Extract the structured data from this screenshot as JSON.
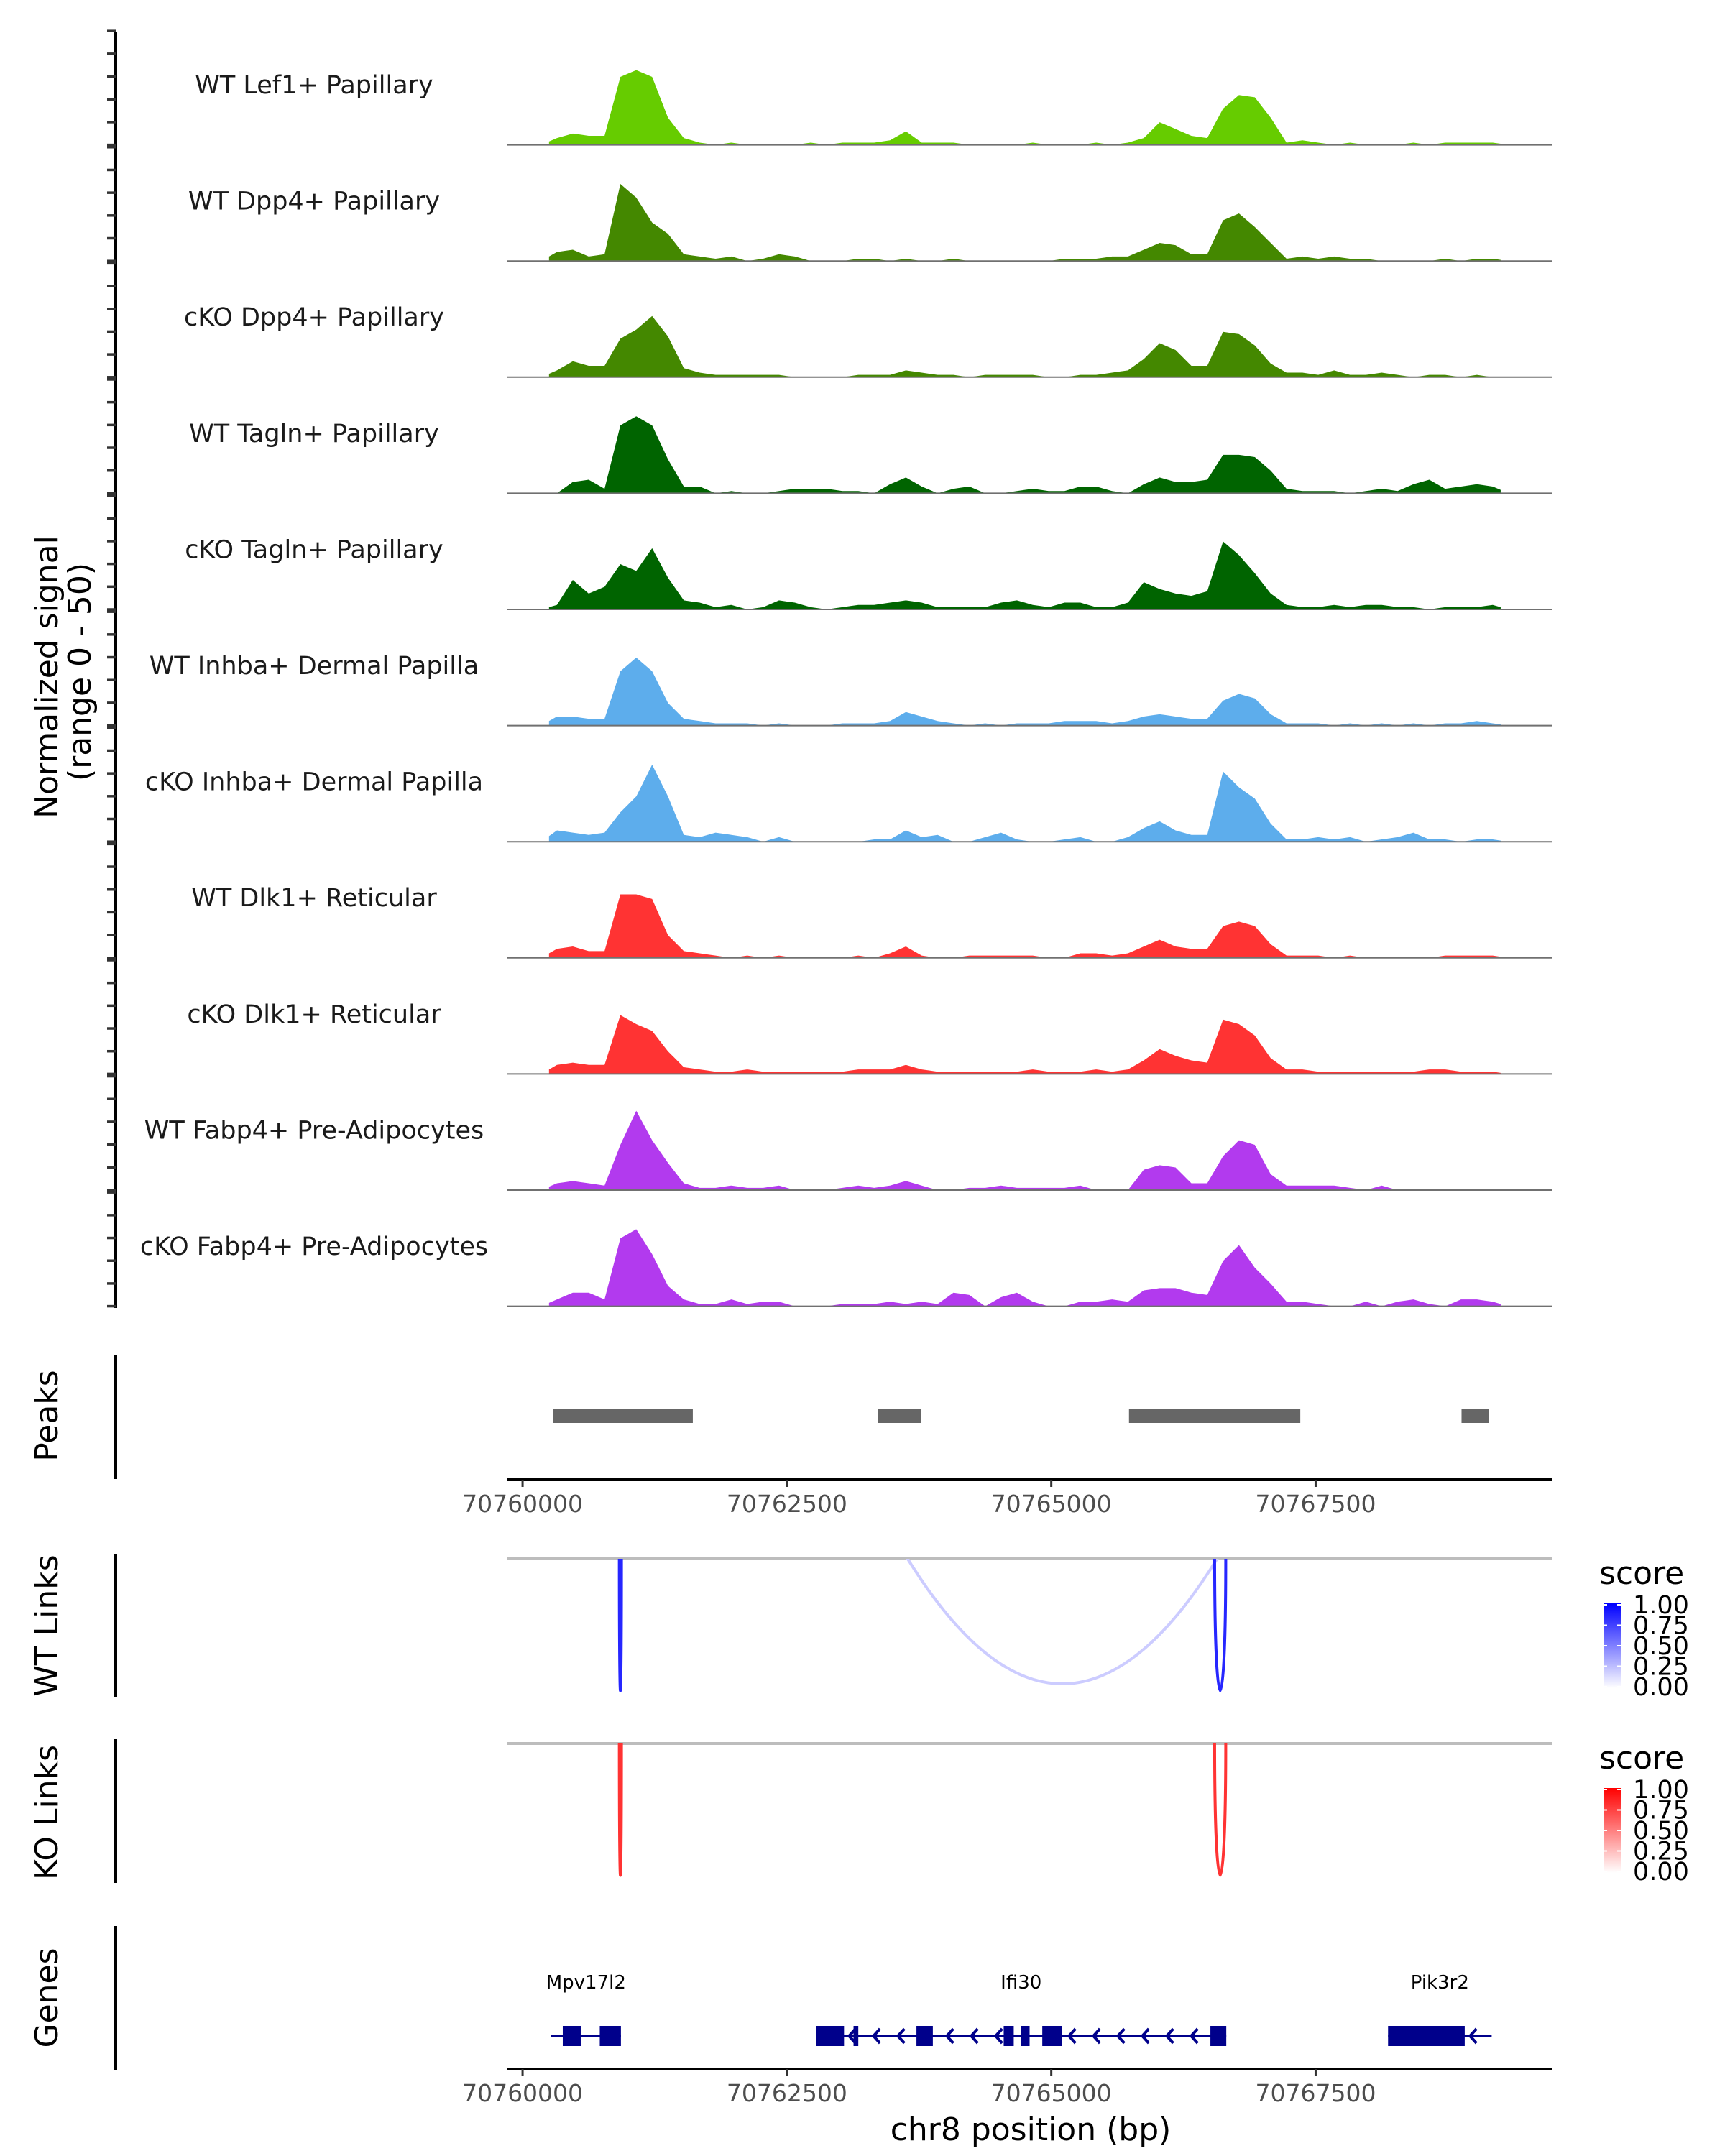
{
  "chart_data": {
    "type": "area",
    "title": "",
    "region": {
      "chrom": "chr8",
      "start": 70759850,
      "end": 70769740
    },
    "xlabel": "chr8 position (bp)",
    "ylabel": "Normalized signal\n(range 0 - 50)",
    "ylabel_lines": [
      "Normalized signal",
      "(range 0 - 50)"
    ],
    "ylim": [
      0,
      50
    ],
    "x_ticks": [
      70760000,
      70762500,
      70765000,
      70767500
    ],
    "x_tick_labels": [
      "70760000",
      "70762500",
      "70765000",
      "70767500"
    ],
    "bin_start": 70760250,
    "bin_width": 150,
    "coverage_tracks": [
      {
        "name": "WT Lef1+ Papillary",
        "color": "#66CC00",
        "values": [
          3,
          5,
          4,
          4,
          30,
          33,
          30,
          12,
          3,
          1,
          0,
          1,
          0,
          0,
          0,
          0,
          1,
          0,
          1,
          1,
          1,
          2,
          6,
          1,
          1,
          1,
          0,
          0,
          0,
          0,
          1,
          0,
          0,
          0,
          1,
          0,
          1,
          3,
          10,
          7,
          4,
          3,
          16,
          22,
          21,
          12,
          1,
          2,
          1,
          0,
          1,
          0,
          0,
          0,
          1,
          0,
          1,
          1,
          1,
          1
        ]
      },
      {
        "name": "WT Dpp4+ Papillary",
        "color": "#448800",
        "values": [
          4,
          5,
          2,
          3,
          34,
          28,
          17,
          12,
          3,
          2,
          1,
          2,
          0,
          1,
          3,
          2,
          0,
          0,
          0,
          1,
          1,
          0,
          1,
          0,
          0,
          1,
          0,
          0,
          0,
          0,
          0,
          0,
          1,
          1,
          1,
          2,
          2,
          5,
          8,
          7,
          3,
          3,
          18,
          21,
          15,
          8,
          1,
          2,
          1,
          2,
          1,
          1,
          0,
          0,
          0,
          0,
          1,
          0,
          1,
          1
        ]
      },
      {
        "name": "cKO Dpp4+ Papillary",
        "color": "#448800",
        "values": [
          3,
          7,
          5,
          5,
          17,
          21,
          27,
          18,
          4,
          2,
          1,
          1,
          1,
          1,
          1,
          0,
          0,
          0,
          0,
          1,
          1,
          1,
          3,
          2,
          1,
          1,
          0,
          1,
          1,
          1,
          1,
          0,
          0,
          1,
          1,
          2,
          3,
          8,
          15,
          12,
          5,
          5,
          20,
          19,
          14,
          6,
          2,
          2,
          1,
          3,
          1,
          1,
          2,
          1,
          0,
          1,
          1,
          0,
          1,
          0
        ]
      },
      {
        "name": "WT Tagln+ Papillary",
        "color": "#006400",
        "values": [
          0,
          5,
          6,
          2,
          30,
          34,
          30,
          15,
          3,
          3,
          0,
          1,
          0,
          0,
          1,
          2,
          2,
          2,
          1,
          1,
          0,
          4,
          7,
          3,
          0,
          2,
          3,
          0,
          0,
          1,
          2,
          1,
          1,
          3,
          3,
          1,
          0,
          4,
          7,
          5,
          5,
          6,
          17,
          17,
          16,
          10,
          2,
          1,
          1,
          1,
          0,
          1,
          2,
          1,
          4,
          6,
          2,
          3,
          4,
          3
        ]
      },
      {
        "name": "cKO Tagln+ Papillary",
        "color": "#006400",
        "values": [
          2,
          13,
          7,
          10,
          20,
          17,
          27,
          14,
          4,
          3,
          1,
          2,
          0,
          1,
          4,
          3,
          1,
          0,
          1,
          2,
          2,
          3,
          4,
          3,
          1,
          1,
          1,
          1,
          3,
          4,
          2,
          1,
          3,
          3,
          1,
          1,
          3,
          12,
          9,
          7,
          6,
          8,
          30,
          24,
          16,
          7,
          2,
          1,
          1,
          2,
          1,
          2,
          2,
          1,
          1,
          0,
          1,
          1,
          1,
          2
        ]
      },
      {
        "name": "WT Inhba+ Dermal Papilla",
        "color": "#5DADEC",
        "values": [
          4,
          4,
          3,
          3,
          24,
          30,
          24,
          10,
          3,
          2,
          1,
          1,
          1,
          0,
          1,
          0,
          0,
          0,
          1,
          1,
          1,
          2,
          6,
          4,
          2,
          1,
          0,
          1,
          0,
          1,
          1,
          1,
          2,
          2,
          2,
          1,
          2,
          4,
          5,
          4,
          3,
          3,
          11,
          14,
          12,
          5,
          1,
          1,
          1,
          0,
          1,
          0,
          1,
          0,
          1,
          0,
          1,
          1,
          2,
          1
        ]
      },
      {
        "name": "cKO Inhba+ Dermal Papilla",
        "color": "#5DADEC",
        "values": [
          5,
          4,
          3,
          4,
          13,
          20,
          34,
          20,
          3,
          2,
          4,
          3,
          2,
          0,
          2,
          0,
          0,
          0,
          0,
          0,
          1,
          1,
          5,
          2,
          3,
          0,
          0,
          2,
          4,
          1,
          0,
          0,
          1,
          2,
          0,
          0,
          2,
          6,
          9,
          5,
          3,
          3,
          31,
          24,
          19,
          8,
          1,
          1,
          2,
          1,
          2,
          0,
          1,
          2,
          4,
          1,
          1,
          0,
          1,
          1
        ]
      },
      {
        "name": "WT Dlk1+ Reticular",
        "color": "#FF3333",
        "values": [
          4,
          5,
          3,
          3,
          28,
          28,
          26,
          10,
          3,
          2,
          1,
          0,
          1,
          0,
          1,
          0,
          0,
          0,
          0,
          1,
          0,
          2,
          5,
          1,
          0,
          0,
          1,
          1,
          1,
          1,
          1,
          0,
          0,
          2,
          2,
          1,
          2,
          5,
          8,
          5,
          4,
          4,
          14,
          16,
          14,
          6,
          1,
          1,
          1,
          0,
          1,
          0,
          0,
          0,
          0,
          0,
          1,
          1,
          1,
          1
        ]
      },
      {
        "name": "cKO Dlk1+ Reticular",
        "color": "#FF3333",
        "values": [
          4,
          5,
          4,
          4,
          26,
          22,
          19,
          10,
          3,
          2,
          1,
          1,
          2,
          1,
          1,
          1,
          1,
          1,
          1,
          2,
          2,
          2,
          4,
          2,
          1,
          1,
          1,
          1,
          1,
          1,
          2,
          1,
          1,
          1,
          2,
          1,
          2,
          6,
          11,
          8,
          6,
          5,
          24,
          22,
          17,
          7,
          2,
          2,
          1,
          1,
          1,
          1,
          1,
          1,
          1,
          2,
          2,
          1,
          1,
          1
        ]
      },
      {
        "name": "WT Fabp4+ Pre-Adipocytes",
        "color": "#B23AEE",
        "values": [
          3,
          4,
          3,
          2,
          20,
          35,
          22,
          12,
          3,
          1,
          1,
          2,
          1,
          1,
          2,
          0,
          0,
          0,
          1,
          2,
          1,
          2,
          4,
          2,
          0,
          0,
          1,
          1,
          2,
          1,
          1,
          1,
          1,
          2,
          0,
          0,
          0,
          9,
          11,
          10,
          3,
          3,
          15,
          22,
          20,
          7,
          2,
          2,
          2,
          2,
          1,
          0,
          2,
          0,
          0,
          0,
          0,
          0,
          0,
          0
        ]
      },
      {
        "name": "cKO Fabp4+ Pre-Adipocytes",
        "color": "#B23AEE",
        "values": [
          3,
          6,
          6,
          3,
          30,
          34,
          23,
          9,
          3,
          1,
          1,
          3,
          1,
          2,
          2,
          0,
          0,
          0,
          1,
          1,
          1,
          2,
          1,
          2,
          1,
          6,
          5,
          0,
          4,
          6,
          2,
          0,
          0,
          2,
          2,
          3,
          2,
          7,
          8,
          8,
          6,
          5,
          20,
          27,
          17,
          10,
          2,
          2,
          1,
          0,
          0,
          2,
          0,
          2,
          3,
          1,
          0,
          3,
          3,
          2
        ]
      }
    ],
    "peaks": [
      {
        "start": 70760290,
        "end": 70761610
      },
      {
        "start": 70763360,
        "end": 70763770
      },
      {
        "start": 70765735,
        "end": 70767355
      },
      {
        "start": 70768880,
        "end": 70769140
      }
    ],
    "peaks_color": "#666666",
    "links": [
      {
        "group": "WT",
        "start": 70760915,
        "end": 70760935,
        "score": 0.85
      },
      {
        "group": "WT",
        "start": 70763560,
        "end": 70766650,
        "score": 0.2
      },
      {
        "group": "WT",
        "start": 70766545,
        "end": 70766650,
        "score": 0.85
      },
      {
        "group": "KO",
        "start": 70760915,
        "end": 70760935,
        "score": 0.8
      },
      {
        "group": "KO",
        "start": 70766545,
        "end": 70766650,
        "score": 0.8
      }
    ],
    "link_scale": {
      "WT": {
        "low": "#FFFFFF",
        "high": "#0000FF",
        "title": "score"
      },
      "KO": {
        "low": "#FFFFFF",
        "high": "#FF0000",
        "title": "score"
      },
      "breaks": [
        1.0,
        0.75,
        0.5,
        0.25,
        0.0
      ],
      "break_labels": [
        "1.00",
        "0.75",
        "0.50",
        "0.25",
        "0.00"
      ],
      "limits": [
        0,
        1
      ]
    },
    "genes": [
      {
        "name": "Mpv17l2",
        "strand": "-",
        "start": 70760270,
        "end": 70760930,
        "exons": [
          [
            70760380,
            70760550
          ],
          [
            70760730,
            70760930
          ]
        ]
      },
      {
        "name": "Ifi30",
        "strand": "-",
        "start": 70762775,
        "end": 70766655,
        "exons": [
          [
            70762775,
            70763040
          ],
          [
            70763130,
            70763175
          ],
          [
            70763725,
            70763880
          ],
          [
            70764550,
            70764645
          ],
          [
            70764715,
            70764795
          ],
          [
            70764915,
            70765100
          ],
          [
            70766505,
            70766655
          ]
        ]
      },
      {
        "name": "Pik3r2",
        "strand": "-",
        "start": 70768185,
        "end": 70769165,
        "exons": [
          [
            70768185,
            70768910
          ]
        ]
      }
    ],
    "gene_color": "#00008B"
  },
  "labels": {
    "peaks_track": "Peaks",
    "wt_links_track": "WT Links",
    "ko_links_track": "KO Links",
    "genes_track": "Genes"
  }
}
